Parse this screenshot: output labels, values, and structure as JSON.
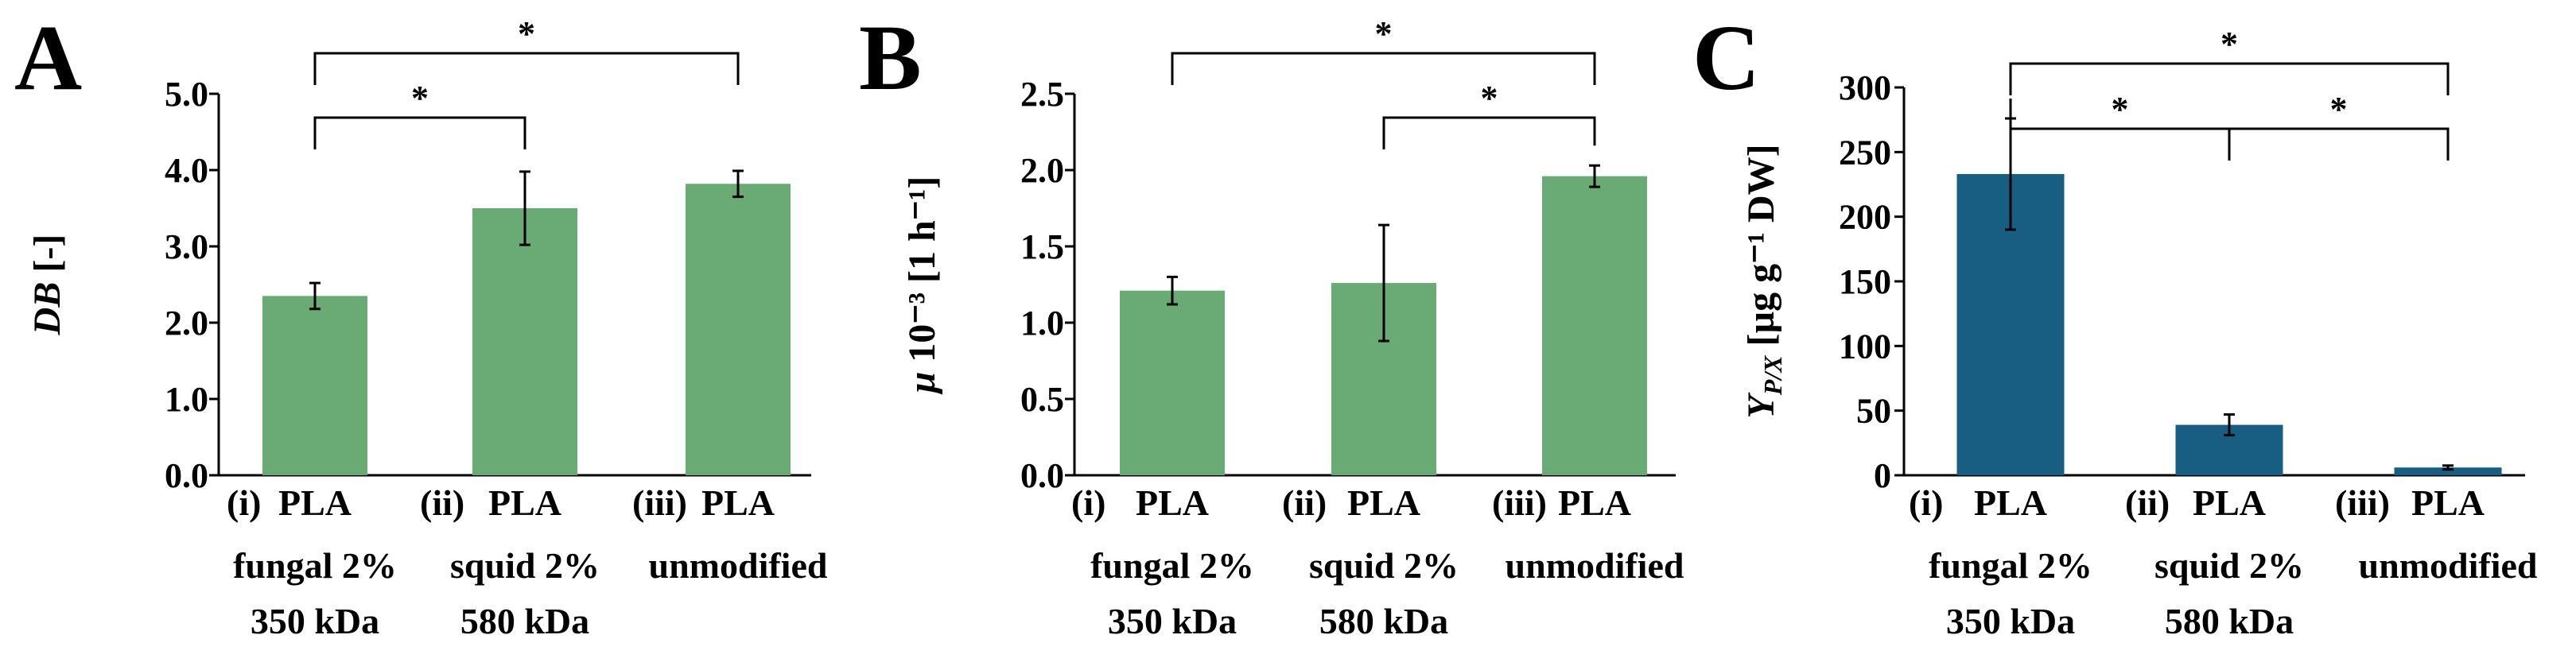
{
  "chart_data": [
    {
      "type": "bar",
      "panel": "A",
      "ylabel": "DB [-]",
      "ylabel_italic": "DB",
      "ylabel_rest": " [-]",
      "ylim": [
        0,
        5
      ],
      "ticks": [
        0,
        1,
        2,
        3,
        4,
        5
      ],
      "tick_labels": [
        "0.0",
        "1.0",
        "2.0",
        "3.0",
        "4.0",
        "5.0"
      ],
      "categories": [
        [
          "(i)",
          "PLA",
          "fungal 2%",
          "350 kDa"
        ],
        [
          "(ii)",
          "PLA",
          "squid 2%",
          "580 kDa"
        ],
        [
          "(iii)",
          "PLA",
          "unmodified"
        ]
      ],
      "values": [
        2.35,
        3.5,
        3.82
      ],
      "errors": [
        0.17,
        0.48,
        0.17
      ],
      "bar_color": "#6aaa74",
      "brackets": [
        {
          "from": 0,
          "to": 1,
          "label": "*"
        },
        {
          "from": 0,
          "to": 2,
          "label": "*"
        }
      ]
    },
    {
      "type": "bar",
      "panel": "B",
      "ylabel": "μ 10⁻³ [1 h⁻¹]",
      "ylabel_italic": "μ",
      "ylabel_rest": " 10⁻³ [1 h⁻¹]",
      "ylim": [
        0,
        2.5
      ],
      "ticks": [
        0,
        0.5,
        1,
        1.5,
        2,
        2.5
      ],
      "tick_labels": [
        "0.0",
        "0.5",
        "1.0",
        "1.5",
        "2.0",
        "2.5"
      ],
      "categories": [
        [
          "(i)",
          "PLA",
          "fungal 2%",
          "350 kDa"
        ],
        [
          "(ii)",
          "PLA",
          "squid 2%",
          "580 kDa"
        ],
        [
          "(iii)",
          "PLA",
          "unmodified"
        ]
      ],
      "values": [
        1.21,
        1.26,
        1.96
      ],
      "errors": [
        0.09,
        0.38,
        0.07
      ],
      "bar_color": "#6aaa74",
      "brackets": [
        {
          "from": 1,
          "to": 2,
          "label": "*"
        },
        {
          "from": 0,
          "to": 2,
          "label": "*"
        }
      ]
    },
    {
      "type": "bar",
      "panel": "C",
      "ylabel": "YP/X [µg g⁻¹ DW]",
      "ylabel_italic": "Y",
      "ylabel_sub": "P/X",
      "ylabel_rest": " [µg g⁻¹ DW]",
      "ylim": [
        0,
        300
      ],
      "ticks": [
        0,
        50,
        100,
        150,
        200,
        250,
        300
      ],
      "tick_labels": [
        "0",
        "50",
        "100",
        "150",
        "200",
        "250",
        "300"
      ],
      "categories": [
        [
          "(i)",
          "PLA",
          "fungal 2%",
          "350 kDa"
        ],
        [
          "(ii)",
          "PLA",
          "squid 2%",
          "580 kDa"
        ],
        [
          "(iii)",
          "PLA",
          "unmodified"
        ]
      ],
      "values": [
        233,
        39,
        6
      ],
      "errors": [
        43,
        8,
        1.5
      ],
      "bar_color": "#175e82",
      "brackets": [
        {
          "from": 0,
          "to": 1,
          "label": "*"
        },
        {
          "from": 1,
          "to": 2,
          "label": "*"
        },
        {
          "from": 0,
          "to": 2,
          "label": "*"
        }
      ]
    }
  ]
}
